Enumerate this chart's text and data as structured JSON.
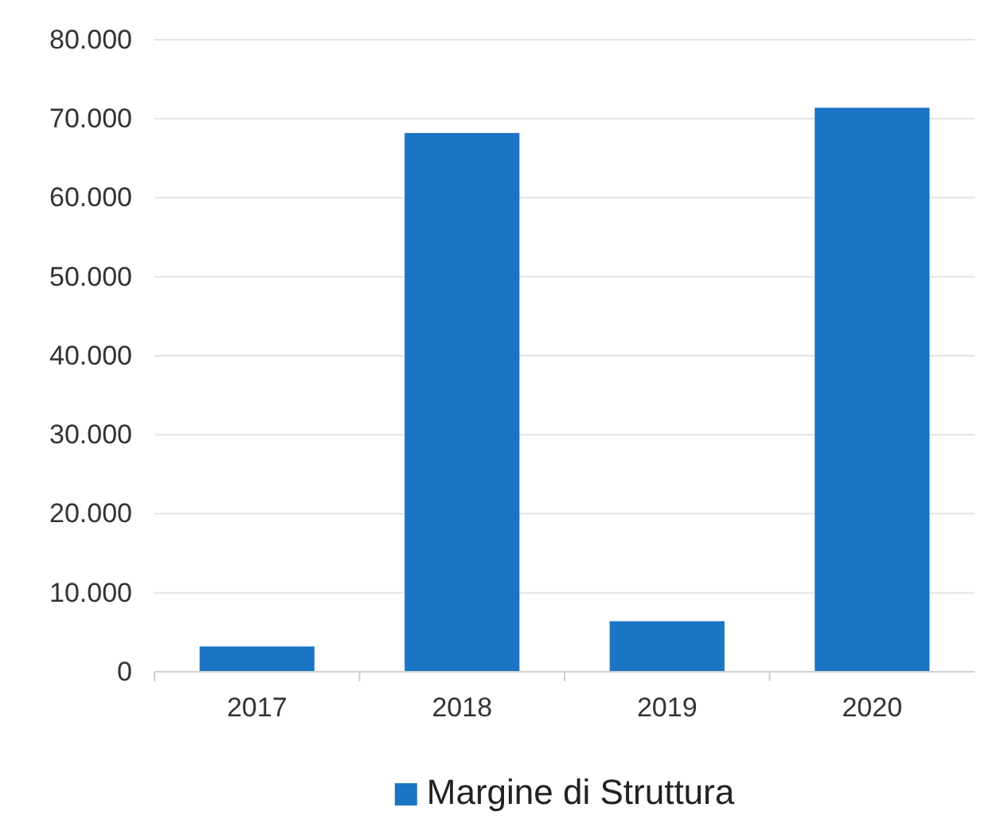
{
  "chart_data": {
    "type": "bar",
    "categories": [
      "2017",
      "2018",
      "2019",
      "2020"
    ],
    "series": [
      {
        "name": "Margine di Struttura",
        "color": "#1c74c4",
        "values": [
          3200,
          68200,
          6400,
          71400
        ]
      }
    ],
    "ylim": [
      0,
      80000
    ],
    "yticks": [
      {
        "value": 0,
        "label": "0"
      },
      {
        "value": 10000,
        "label": "10.000"
      },
      {
        "value": 20000,
        "label": "20.000"
      },
      {
        "value": 30000,
        "label": "30.000"
      },
      {
        "value": 40000,
        "label": "40.000"
      },
      {
        "value": 50000,
        "label": "50.000"
      },
      {
        "value": 60000,
        "label": "60.000"
      },
      {
        "value": 70000,
        "label": "70.000"
      },
      {
        "value": 80000,
        "label": "80.000"
      }
    ],
    "grid": "y",
    "legend": "bottom"
  }
}
